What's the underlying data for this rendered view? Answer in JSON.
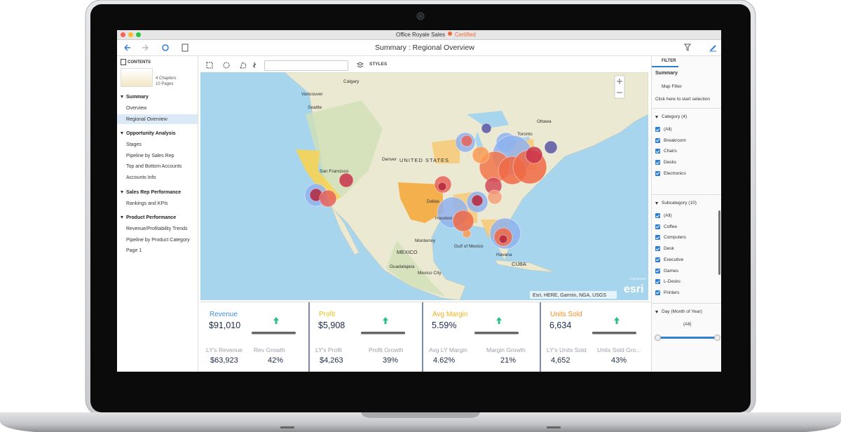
{
  "window": {
    "title": "Office Royale Sales",
    "badge": "Certified"
  },
  "toolbar": {
    "title": "Summary : Regional Overview"
  },
  "sidebar": {
    "heading": "CONTENTS",
    "chapters": "4 Chapters",
    "pages": "10 Pages",
    "sections": [
      {
        "title": "Summary",
        "items": [
          "Overview",
          "Regional Overview"
        ]
      },
      {
        "title": "Opportunity Analysis",
        "items": [
          "Stages",
          "Pipeline by Sales Rep",
          "Top and Bottom Accounts",
          "Accounts Info"
        ]
      },
      {
        "title": "Sales Rep Performance",
        "items": [
          "Rankings and KPIs"
        ]
      },
      {
        "title": "Product Performance",
        "items": [
          "Revenue/Profitability Trends",
          "Pipeline by Product Category",
          "Page 1"
        ]
      }
    ]
  },
  "map": {
    "styles_button": "STYLES",
    "labels": [
      "Calgary",
      "Vancouver",
      "Seattle",
      "Ottawa",
      "Toronto",
      "Denver",
      "UNITED STATES",
      "San Francisco",
      "Dallas",
      "Houston",
      "Monterrey",
      "MEXICO",
      "Gulf of Mexico",
      "Guadalajara",
      "Mexico City",
      "Havana",
      "CUBA"
    ],
    "attribution": "Esri, HERE, Garmin, NGA, USGS",
    "logo_caption": "POWERED BY",
    "logo": "esri"
  },
  "kpis": [
    {
      "title": "Revenue",
      "value": "$91,010",
      "ly_label": "LY's Revenue",
      "ly_value": "$63,923",
      "growth_label": "Rev Growth",
      "growth_value": "42%"
    },
    {
      "title": "Profit",
      "value": "$5,908",
      "ly_label": "LY's Profit",
      "ly_value": "$4,263",
      "growth_label": "Profit Growth",
      "growth_value": "39%"
    },
    {
      "title": "Avg Margin",
      "value": "5.59%",
      "ly_label": "Avg LY Margin",
      "ly_value": "4.62%",
      "growth_label": "Margin Growth",
      "growth_value": "21%"
    },
    {
      "title": "Units Sold",
      "value": "6,634",
      "ly_label": "LY's Units Sold",
      "ly_value": "4,652",
      "growth_label": "Units Sold Gro...",
      "growth_value": "43%"
    }
  ],
  "filter": {
    "tab": "FILTER",
    "heading": "Summary",
    "map_filter": "Map Filter",
    "hint": "Click here to start selection",
    "groups": [
      {
        "title": "Category (4)",
        "items": [
          "(All)",
          "Breakroom",
          "Chairs",
          "Desks",
          "Electronics"
        ]
      },
      {
        "title": "Subcategory (10)",
        "items": [
          "(All)",
          "Coffee",
          "Computers",
          "Desk",
          "Executive",
          "Games",
          "L-Desks",
          "Printers"
        ]
      }
    ],
    "day": {
      "title": "Day (Month of Year)",
      "value": "(All)"
    }
  }
}
